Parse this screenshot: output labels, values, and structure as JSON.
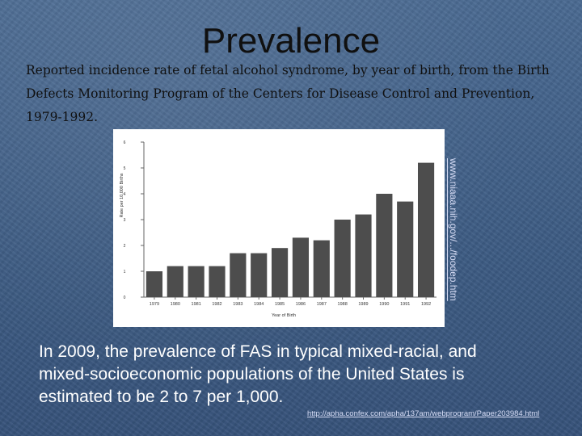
{
  "slide": {
    "title": "Prevalence",
    "subtitle": "Reported incidence rate of fetal alcohol syndrome, by year of birth, from the Birth Defects Monitoring Program of the Centers for Disease Control and Prevention, 1979-1992.",
    "side_link": "www.niaaa.nih.gov/.../foodep.htm",
    "body": "In 2009, the prevalence of FAS in typical mixed-racial, and mixed-socioeconomic populations of the United States is estimated to be 2 to 7 per 1,000.",
    "source_link": "http://apha.confex.com/apha/137am/webprogram/Paper203984.html"
  },
  "colors": {
    "background": "#3f5e86",
    "bar": "#4d4d4d",
    "text_dark": "#101010",
    "text_light": "#ffffff",
    "link": "#d6dcf5"
  },
  "chart_data": {
    "type": "bar",
    "categories": [
      "1979",
      "1980",
      "1981",
      "1982",
      "1983",
      "1984",
      "1985",
      "1986",
      "1987",
      "1988",
      "1989",
      "1990",
      "1991",
      "1992"
    ],
    "values": [
      1.0,
      1.2,
      1.2,
      1.2,
      1.7,
      1.7,
      1.9,
      2.3,
      2.2,
      3.0,
      3.2,
      4.0,
      3.7,
      5.2
    ],
    "yticks": [
      0,
      1,
      2,
      3,
      4,
      5,
      6
    ],
    "ylim": [
      0,
      6
    ],
    "xlabel": "Year of Birth",
    "ylabel": "Rate per 10,000 Births",
    "grid": false
  }
}
